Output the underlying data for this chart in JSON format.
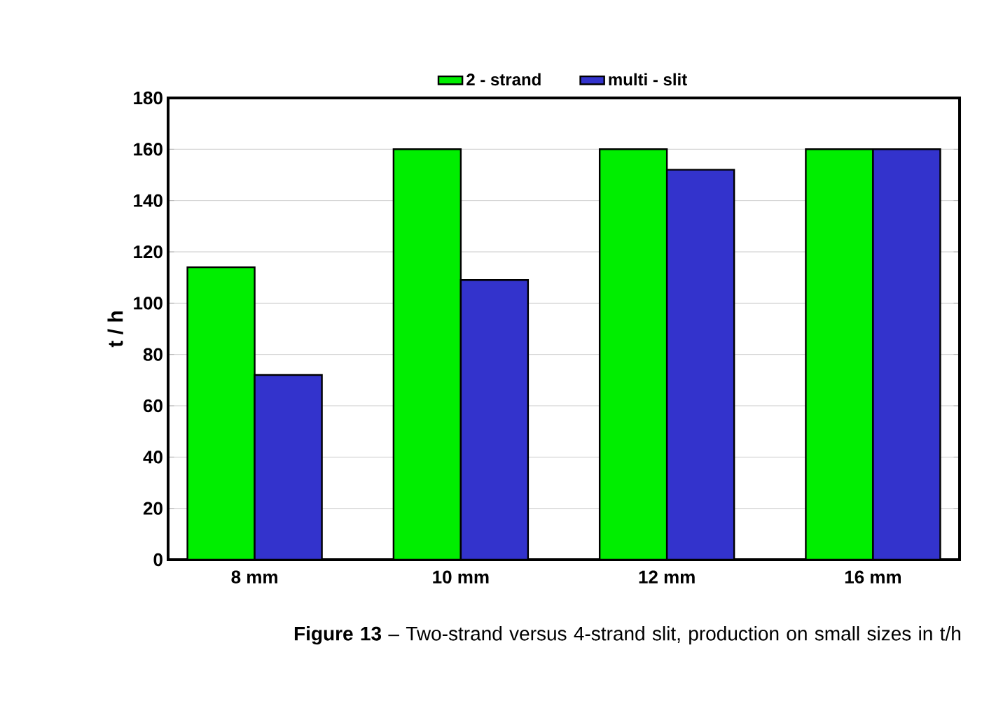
{
  "chart_data": {
    "type": "bar",
    "title": "**Figure 13** – Two-strand versus 4-strand slit, production on small sizes in t/h",
    "ylabel": "t / h",
    "categories": [
      "8 mm",
      "10 mm",
      "12 mm",
      "16 mm"
    ],
    "series": [
      {
        "name": "2 - strand",
        "color": "#00ee00",
        "values": [
          114,
          160,
          160,
          160
        ]
      },
      {
        "name": "multi - slit",
        "color": "#3333cc",
        "values": [
          72,
          109,
          152,
          160
        ]
      }
    ],
    "ylim": [
      0,
      180
    ],
    "yticks": [
      0,
      20,
      40,
      60,
      80,
      100,
      120,
      140,
      160,
      180
    ],
    "grid": "y",
    "legend": "top"
  }
}
